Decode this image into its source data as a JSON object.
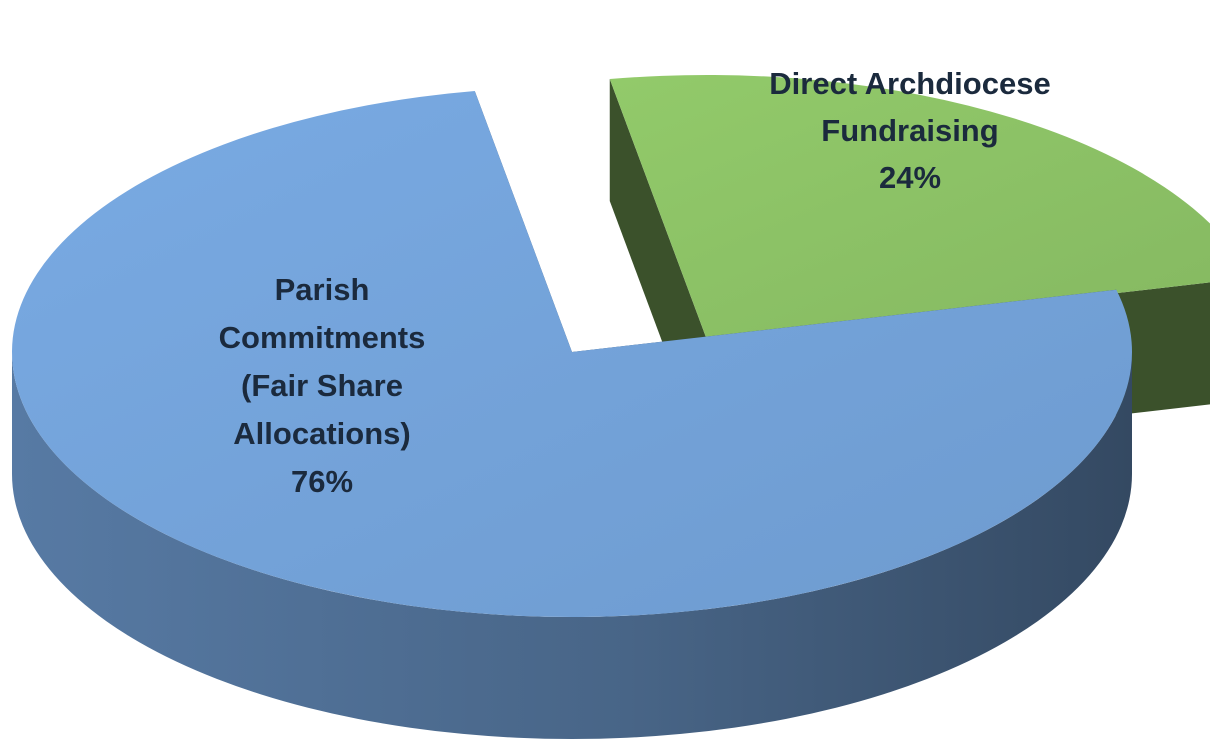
{
  "chart_data": {
    "type": "pie",
    "categories": [
      "Parish Commitments (Fair Share Allocations)",
      "Direct Archdiocese Fundraising"
    ],
    "values": [
      76,
      24
    ],
    "value_labels": [
      "76%",
      "24%"
    ],
    "colors": [
      "#74a3da",
      "#8cc266"
    ]
  }
}
